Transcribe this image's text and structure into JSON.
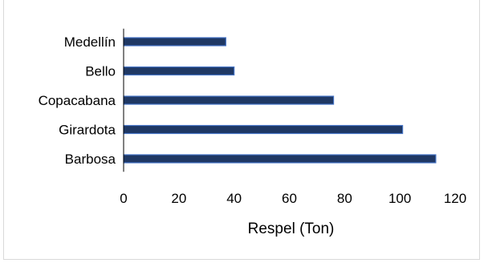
{
  "chart_data": {
    "type": "bar",
    "orientation": "horizontal",
    "title": "",
    "xlabel": "Respel (Ton)",
    "ylabel": "",
    "categories": [
      "Medellín",
      "Bello",
      "Copacabana",
      "Girardota",
      "Barbosa"
    ],
    "values": [
      37,
      40,
      76,
      101,
      113
    ],
    "xlim": [
      0,
      120
    ],
    "xticks": [
      "0",
      "20",
      "40",
      "60",
      "80",
      "100",
      "120"
    ],
    "grid": false,
    "legend": "none",
    "colors": {
      "bar_fill": "#1f3864",
      "bar_edge": "#4472c4",
      "axis": "#000000"
    }
  }
}
